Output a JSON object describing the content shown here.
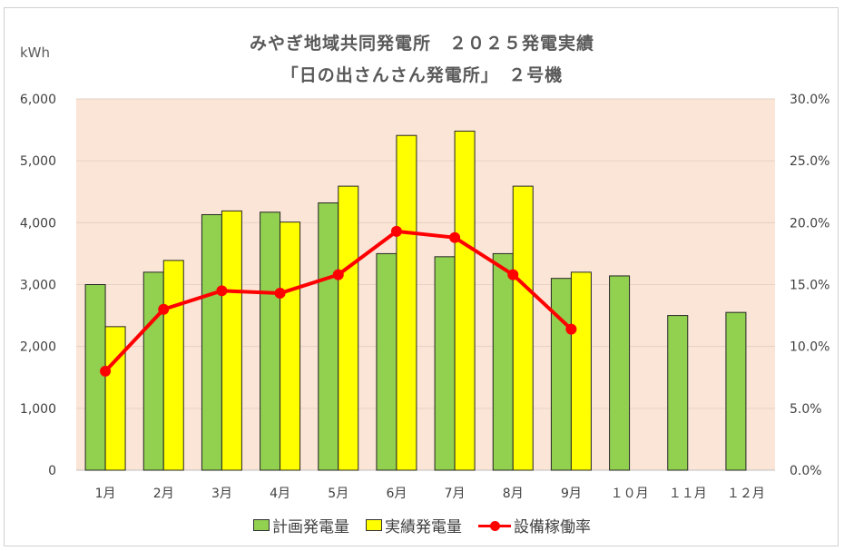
{
  "chart_data": {
    "type": "bar",
    "title_line1": "みやぎ地域共同発電所　２０２５発電実績",
    "title_line2": "「日の出さんさん発電所」　２号機",
    "ylabel": "kWh",
    "categories": [
      "1月",
      "2月",
      "3月",
      "4月",
      "5月",
      "6月",
      "7月",
      "8月",
      "9月",
      "１０月",
      "１１月",
      "１２月"
    ],
    "ylim": [
      0,
      6000
    ],
    "y_ticks": [
      "0",
      "1,000",
      "2,000",
      "3,000",
      "4,000",
      "5,000",
      "6,000"
    ],
    "y2lim": [
      0,
      30
    ],
    "y2_ticks": [
      "0.0%",
      "5.0%",
      "10.0%",
      "15.0%",
      "20.0%",
      "25.0%",
      "30.0%"
    ],
    "series": [
      {
        "name": "計画発電量",
        "type": "bar",
        "axis": "left",
        "color": "#92d050",
        "values": [
          3000,
          3200,
          4130,
          4170,
          4320,
          3500,
          3450,
          3500,
          3100,
          3140,
          2500,
          2550
        ]
      },
      {
        "name": "実績発電量",
        "type": "bar",
        "axis": "left",
        "color": "#ffff00",
        "values": [
          2320,
          3390,
          4190,
          4010,
          4590,
          5410,
          5480,
          4590,
          3200,
          null,
          null,
          null
        ]
      },
      {
        "name": "設備稼働率",
        "type": "line",
        "axis": "right",
        "color": "#ff0000",
        "values": [
          8.0,
          13.0,
          14.5,
          14.3,
          15.8,
          19.3,
          18.8,
          15.8,
          11.4,
          null,
          null,
          null
        ]
      }
    ],
    "plot_background": "#fbe5d6",
    "grid": true,
    "legend_position": "bottom"
  }
}
